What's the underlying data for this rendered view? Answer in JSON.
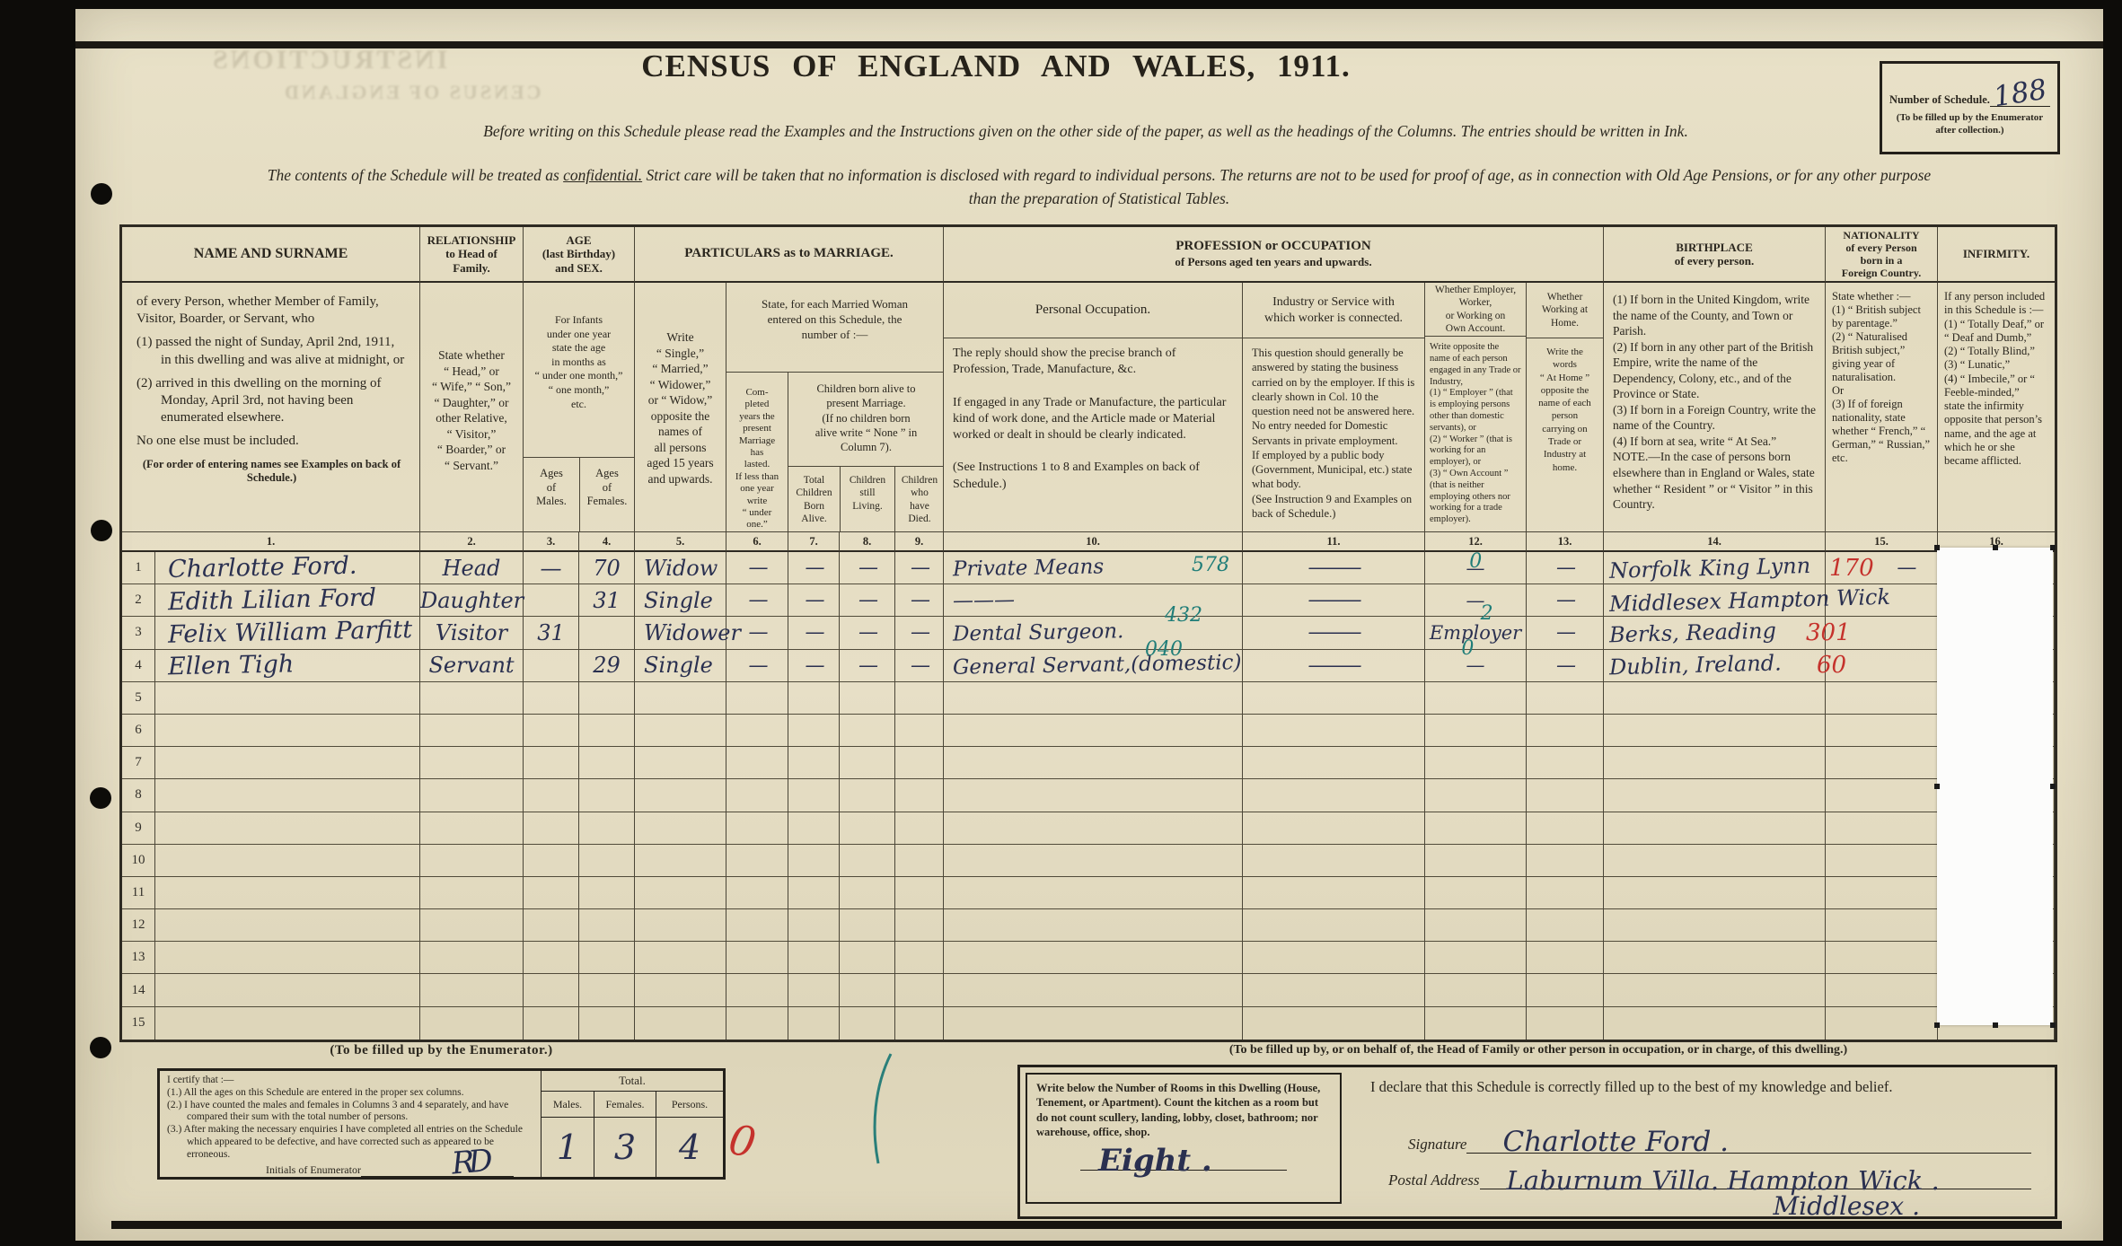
{
  "header": {
    "title": "CENSUS OF ENGLAND AND WALES, 1911.",
    "schedule_label": "Number of Schedule.",
    "schedule_number": "188",
    "schedule_note": "(To be filled up by the Enumerator\nafter collection.)",
    "intro1": "Before writing on this Schedule please read the Examples and the Instructions given on the other side of the paper, as well as the headings of the Columns.  The entries should be written in Ink.",
    "intro2_pre": "The contents of the Schedule will be treated as ",
    "intro2_conf": "confidential.",
    "intro2_post": "  Strict care will be taken that no information is disclosed with regard to individual persons.  The returns are not to be used for proof of age, as in connection with Old Age Pensions, or for any other purpose",
    "intro2_line2": "than the preparation of Statistical Tables."
  },
  "artifacts": {
    "ghost1": "INSTRUCTIONS",
    "ghost2": "CENSUS OF ENGLAND"
  },
  "table": {
    "headers": {
      "h_name": "NAME AND SURNAME",
      "h_rel": "RELATIONSHIP\nto Head of\nFamily.",
      "h_age": "AGE\n(last Birthday)\nand SEX.",
      "h_marr": "PARTICULARS as to MARRIAGE.",
      "h_prof1": "PROFESSION or OCCUPATION",
      "h_prof2": "of Persons aged ten years and upwards.",
      "h_birth": "BIRTHPLACE\nof every person.",
      "h_nat": "NATIONALITY\nof every Person\nborn in a\nForeign Country.",
      "h_inf": "INFIRMITY."
    },
    "descs": {
      "name_p1": "of every Person, whether Member of Family, Visitor, Boarder, or Servant, who",
      "name_i1": "(1) passed the night of Sunday, April 2nd, 1911, in this dwelling and was alive at midnight, or",
      "name_i2": "(2) arrived in this dwelling on the morning of Monday, April 3rd, not having been enumerated elsewhere.",
      "name_p2": "No one else must be included.",
      "name_note": "(For order of entering names see Examples on back of Schedule.)",
      "rel": "State whether\n“ Head,” or\n“ Wife,” “ Son,”\n“ Daughter,” or\nother Relative,\n“ Visitor,”\n“ Boarder,” or\n“ Servant.”",
      "age_top": "For Infants\nunder one year\nstate the age\nin months as\n“ under one month,”\n“ one month,”\netc.",
      "age_m": "Ages\nof\nMales.",
      "age_f": "Ages\nof\nFemales.",
      "marr_status": "Write\n“ Single,”\n“ Married,”\n“ Widower,”\nor “ Widow,”\nopposite the\nnames of\nall persons\naged 15 years\nand upwards.",
      "marr_top": "State, for each Married Woman\nentered on this Schedule, the\nnumber of :—",
      "marr_years": "Com-\npleted\nyears the\npresent\nMarriage\nhas\nlasted.\nIf less than\none year\nwrite\n“ under\none.”",
      "children_head": "Children born alive to\npresent Marriage.\n(If no children born\nalive write “ None ” in\nColumn 7).",
      "born": "Total\nChildren\nBorn\nAlive.",
      "living": "Children\nstill\nLiving.",
      "died": "Children\nwho\nhave\nDied.",
      "occ_title": "Personal Occupation.",
      "occ_body": "The reply should show the precise branch of Profession, Trade, Manufacture, &c.\n\nIf engaged in any Trade or Manufacture, the particular kind of work done, and the Article made or Material worked or dealt in should be clearly indicated.\n\n(See Instructions 1 to 8 and Examples on back of Schedule.)",
      "ind_title": "Industry or Service with\nwhich worker is connected.",
      "ind_body": "This question should generally be answered by stating the business carried on by the employer.  If this is clearly shown in Col. 10 the question need not be answered here.\nNo entry needed for Domestic Servants in private employment.\nIf employed by a public body (Government, Municipal, etc.) state what body.\n(See Instruction 9 and Examples on back of Schedule.)",
      "emp_title": "Whether Employer,\nWorker,\nor Working on\nOwn Account.",
      "emp_body": "Write opposite the name of each person engaged in any Trade or Industry,\n(1) “ Employer ” (that is employing persons other than domestic servants), or\n(2) “ Worker ” (that is working for an employer), or\n(3) “ Own Account ” (that is neither employing others nor working for a trade employer).",
      "home_title": "Whether\nWorking at\nHome.",
      "home_body": "Write the\nwords\n“ At Home ”\nopposite the\nname of each\nperson\ncarrying on\nTrade or\nIndustry at\nhome.",
      "birth_body": "(1) If born in the United Kingdom, write the name of the County, and Town or Parish.\n(2) If born in any other part of the British Empire, write the name of the Dependency, Colony, etc., and of the Province or State.\n(3) If born in a Foreign Country, write the name of the Country.\n(4) If born at sea, write “ At Sea.”\nNOTE.—In the case of persons born elsewhere than in England or Wales, state whether “ Resident ” or “ Visitor ” in this Country.",
      "nat_body": "State whether :—\n(1) “ British subject by parentage.”\n(2) “ Naturalised British subject,” giving year of naturalisation.\nOr\n(3) If of foreign nationality, state whether “ French,” “ German,” “ Russian,” etc.",
      "inf_body": "If any person included in this Schedule is :—\n(1) “ Totally Deaf,” or “ Deaf and Dumb,”\n(2) “ Totally Blind,”\n(3) “ Lunatic,”\n(4) “ Imbecile,” or “ Feeble-minded,”\nstate the infirmity opposite that person’s name, and the age at which he or she became afflicted."
    },
    "col_numbers": [
      "1.",
      "2.",
      "3.",
      "4.",
      "5.",
      "6.",
      "7.",
      "8.",
      "9.",
      "10.",
      "11.",
      "12.",
      "13.",
      "14.",
      "15.",
      "16."
    ],
    "rows": [
      {
        "num": "1",
        "name": "Charlotte Ford.",
        "relationship": "Head",
        "age_male": "—",
        "age_female": "70",
        "marriage": "Widow",
        "marr_years": "—",
        "children_born": "—",
        "children_living": "—",
        "children_died": "—",
        "occupation": "Private Means",
        "occupation_code": "578",
        "industry": "———",
        "employer": "—",
        "employer_code": "0",
        "at_home": "—",
        "birthplace": "Norfolk King Lynn",
        "nationality_code": "170",
        "nationality_dash": "—",
        "infirmity": ""
      },
      {
        "num": "2",
        "name": "Edith Lilian Ford",
        "relationship": "Daughter",
        "age_male": "",
        "age_female": "31",
        "marriage": "Single",
        "marr_years": "—",
        "children_born": "—",
        "children_living": "—",
        "children_died": "—",
        "occupation": "———",
        "occupation_code": "",
        "industry": "———",
        "employer": "—",
        "employer_code": "",
        "at_home": "—",
        "birthplace": "Middlesex Hampton Wick",
        "nationality_code": "",
        "nationality_dash": "",
        "infirmity": ""
      },
      {
        "num": "3",
        "name": "Felix William Parfitt",
        "relationship": "Visitor",
        "age_male": "31",
        "age_female": "",
        "marriage": "Widower",
        "marr_years": "—",
        "children_born": "—",
        "children_living": "—",
        "children_died": "—",
        "occupation": "Dental Surgeon.",
        "occupation_code": "432",
        "industry": "———",
        "employer": "Employer",
        "employer_code": "2",
        "at_home": "—",
        "birthplace": "Berks, Reading",
        "nationality_code": "301",
        "nationality_dash": "",
        "infirmity": ""
      },
      {
        "num": "4",
        "name": "Ellen Tigh",
        "relationship": "Servant",
        "age_male": "",
        "age_female": "29",
        "marriage": "Single",
        "marr_years": "—",
        "children_born": "—",
        "children_living": "—",
        "children_died": "—",
        "occupation": "General Servant,(domestic)",
        "occupation_code": "040",
        "industry": "———",
        "employer": "—",
        "employer_code": "0",
        "at_home": "—",
        "birthplace": "Dublin, Ireland.",
        "nationality_code": "60",
        "nationality_dash": "",
        "infirmity": ""
      },
      {
        "num": "5",
        "name": "",
        "relationship": "",
        "age_male": "",
        "age_female": "",
        "marriage": "",
        "marr_years": "",
        "children_born": "",
        "children_living": "",
        "children_died": "",
        "occupation": "",
        "occupation_code": "",
        "industry": "",
        "employer": "",
        "employer_code": "",
        "at_home": "",
        "birthplace": "",
        "nationality_code": "",
        "nationality_dash": "",
        "infirmity": ""
      },
      {
        "num": "6",
        "name": "",
        "relationship": "",
        "age_male": "",
        "age_female": "",
        "marriage": "",
        "marr_years": "",
        "children_born": "",
        "children_living": "",
        "children_died": "",
        "occupation": "",
        "occupation_code": "",
        "industry": "",
        "employer": "",
        "employer_code": "",
        "at_home": "",
        "birthplace": "",
        "nationality_code": "",
        "nationality_dash": "",
        "infirmity": ""
      },
      {
        "num": "7",
        "name": "",
        "relationship": "",
        "age_male": "",
        "age_female": "",
        "marriage": "",
        "marr_years": "",
        "children_born": "",
        "children_living": "",
        "children_died": "",
        "occupation": "",
        "occupation_code": "",
        "industry": "",
        "employer": "",
        "employer_code": "",
        "at_home": "",
        "birthplace": "",
        "nationality_code": "",
        "nationality_dash": "",
        "infirmity": ""
      },
      {
        "num": "8",
        "name": "",
        "relationship": "",
        "age_male": "",
        "age_female": "",
        "marriage": "",
        "marr_years": "",
        "children_born": "",
        "children_living": "",
        "children_died": "",
        "occupation": "",
        "occupation_code": "",
        "industry": "",
        "employer": "",
        "employer_code": "",
        "at_home": "",
        "birthplace": "",
        "nationality_code": "",
        "nationality_dash": "",
        "infirmity": ""
      },
      {
        "num": "9",
        "name": "",
        "relationship": "",
        "age_male": "",
        "age_female": "",
        "marriage": "",
        "marr_years": "",
        "children_born": "",
        "children_living": "",
        "children_died": "",
        "occupation": "",
        "occupation_code": "",
        "industry": "",
        "employer": "",
        "employer_code": "",
        "at_home": "",
        "birthplace": "",
        "nationality_code": "",
        "nationality_dash": "",
        "infirmity": ""
      },
      {
        "num": "10",
        "name": "",
        "relationship": "",
        "age_male": "",
        "age_female": "",
        "marriage": "",
        "marr_years": "",
        "children_born": "",
        "children_living": "",
        "children_died": "",
        "occupation": "",
        "occupation_code": "",
        "industry": "",
        "employer": "",
        "employer_code": "",
        "at_home": "",
        "birthplace": "",
        "nationality_code": "",
        "nationality_dash": "",
        "infirmity": ""
      },
      {
        "num": "11",
        "name": "",
        "relationship": "",
        "age_male": "",
        "age_female": "",
        "marriage": "",
        "marr_years": "",
        "children_born": "",
        "children_living": "",
        "children_died": "",
        "occupation": "",
        "occupation_code": "",
        "industry": "",
        "employer": "",
        "employer_code": "",
        "at_home": "",
        "birthplace": "",
        "nationality_code": "",
        "nationality_dash": "",
        "infirmity": ""
      },
      {
        "num": "12",
        "name": "",
        "relationship": "",
        "age_male": "",
        "age_female": "",
        "marriage": "",
        "marr_years": "",
        "children_born": "",
        "children_living": "",
        "children_died": "",
        "occupation": "",
        "occupation_code": "",
        "industry": "",
        "employer": "",
        "employer_code": "",
        "at_home": "",
        "birthplace": "",
        "nationality_code": "",
        "nationality_dash": "",
        "infirmity": ""
      },
      {
        "num": "13",
        "name": "",
        "relationship": "",
        "age_male": "",
        "age_female": "",
        "marriage": "",
        "marr_years": "",
        "children_born": "",
        "children_living": "",
        "children_died": "",
        "occupation": "",
        "occupation_code": "",
        "industry": "",
        "employer": "",
        "employer_code": "",
        "at_home": "",
        "birthplace": "",
        "nationality_code": "",
        "nationality_dash": "",
        "infirmity": ""
      },
      {
        "num": "14",
        "name": "",
        "relationship": "",
        "age_male": "",
        "age_female": "",
        "marriage": "",
        "marr_years": "",
        "children_born": "",
        "children_living": "",
        "children_died": "",
        "occupation": "",
        "occupation_code": "",
        "industry": "",
        "employer": "",
        "employer_code": "",
        "at_home": "",
        "birthplace": "",
        "nationality_code": "",
        "nationality_dash": "",
        "infirmity": ""
      },
      {
        "num": "15",
        "name": "",
        "relationship": "",
        "age_male": "",
        "age_female": "",
        "marriage": "",
        "marr_years": "",
        "children_born": "",
        "children_living": "",
        "children_died": "",
        "occupation": "",
        "occupation_code": "",
        "industry": "",
        "employer": "",
        "employer_code": "",
        "at_home": "",
        "birthplace": "",
        "nationality_code": "",
        "nationality_dash": "",
        "infirmity": ""
      }
    ]
  },
  "enumerator": {
    "header": "(To be filled up by the Enumerator.)",
    "certify": "I certify that :—",
    "item1": "(1.) All the ages on this Schedule are entered in the proper sex columns.",
    "item2": "(2.) I have counted the males and females in Columns 3 and 4 separately, and have compared their sum with the total number of persons.",
    "item3": "(3.) After making the necessary enquiries I have completed all entries on the Schedule which appeared to be defective, and have corrected such as appeared to be erroneous.",
    "initials_label": "Initials of Enumerator",
    "initials_value": "RD",
    "total_title": "Total.",
    "males_label": "Males.",
    "females_label": "Females.",
    "persons_label": "Persons.",
    "males_value": "1",
    "females_value": "3",
    "persons_value": "4",
    "red_mark": "0"
  },
  "declaration": {
    "header": "(To be filled up by, or on behalf of, the Head of Family or other person in occupation, or in charge, of this dwelling.)",
    "rooms_text": "Write below the Number of Rooms in this Dwelling (House, Tenement, or Apartment).  Count the kitchen as a room but do not count scullery, landing, lobby, closet, bathroom; nor warehouse, office, shop.",
    "rooms_value": "Eight .",
    "declare_text": "I declare that this Schedule is correctly filled up to the best of my knowledge and belief.",
    "signature_label": "Signature",
    "signature_value": "Charlotte Ford .",
    "postal_label": "Postal Address",
    "postal_value": "Laburnum Villa. Hampton Wick .",
    "postal_value2": "Middlesex ."
  }
}
